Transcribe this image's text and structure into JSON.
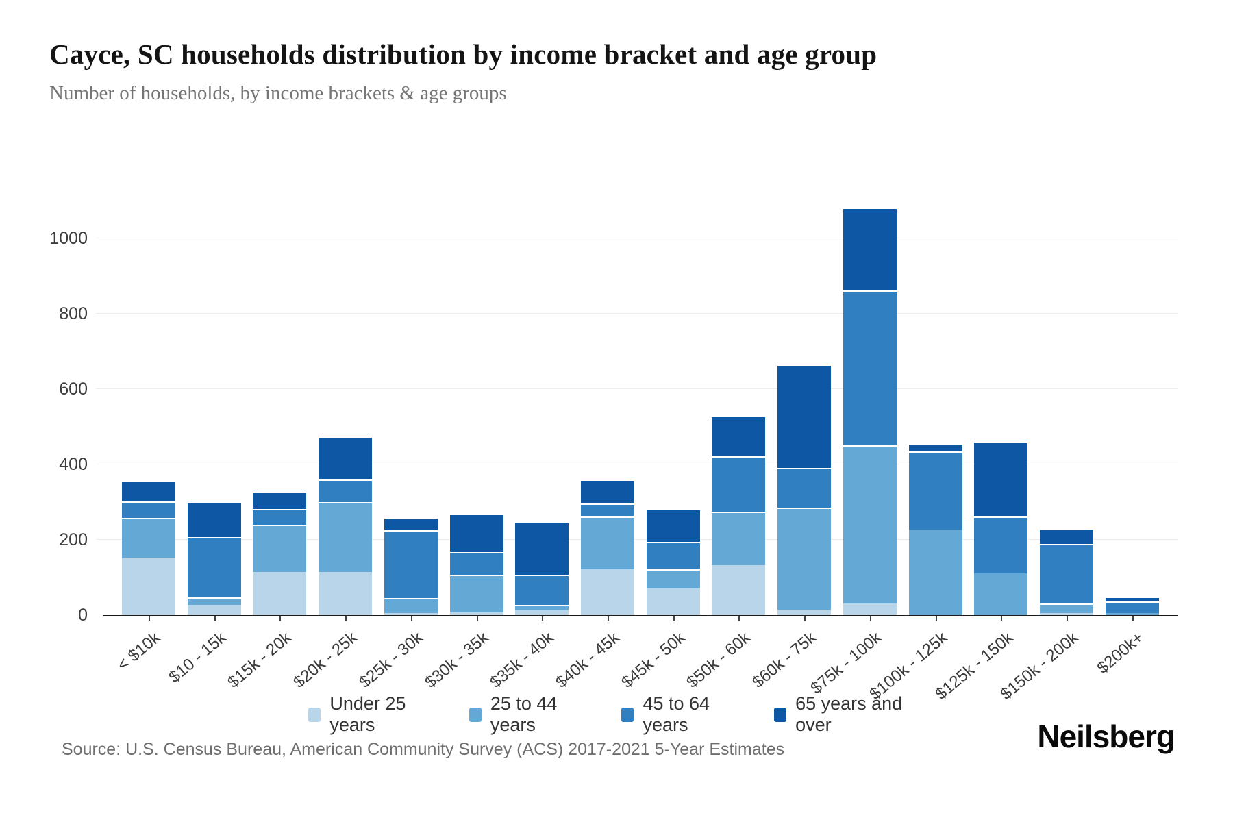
{
  "header": {
    "title": "Cayce, SC households distribution by income bracket and age group",
    "subtitle": "Number of households, by income brackets & age groups"
  },
  "footer": {
    "source": "Source: U.S. Census Bureau, American Community Survey (ACS) 2017-2021 5-Year Estimates",
    "logo": "Neilsberg"
  },
  "colors": {
    "under_25": "#b9d5ea",
    "25_to_44": "#64a9d6",
    "45_to_64": "#2f7fc1",
    "65_and_over": "#0d57a5",
    "gridline": "#ececec",
    "axis": "#1c1c1c"
  },
  "chart_data": {
    "type": "bar",
    "stacked": true,
    "title": "Cayce, SC households distribution by income bracket and age group",
    "subtitle": "Number of households, by income brackets & age groups",
    "xlabel": "",
    "ylabel": "",
    "ylim": [
      0,
      1170
    ],
    "yticks": [
      0,
      200,
      400,
      600,
      800,
      1000
    ],
    "grid": true,
    "legend_position": "bottom",
    "categories": [
      "< $10k",
      "$10 - 15k",
      "$15k - 20k",
      "$20k - 25k",
      "$25k - 30k",
      "$30k - 35k",
      "$35k - 40k",
      "$40k - 45k",
      "$45k - 50k",
      "$50k - 60k",
      "$60k - 75k",
      "$75k - 100k",
      "$100k - 125k",
      "$125k - 150k",
      "$150k - 200k",
      "$200k+"
    ],
    "series": [
      {
        "name": "Under 25 years",
        "color": "#b9d5ea",
        "values": [
          152,
          28,
          115,
          115,
          5,
          8,
          12,
          122,
          70,
          133,
          15,
          30,
          0,
          0,
          5,
          0
        ]
      },
      {
        "name": "25 to 44 years",
        "color": "#64a9d6",
        "values": [
          105,
          20,
          125,
          185,
          40,
          100,
          15,
          140,
          50,
          142,
          270,
          420,
          228,
          110,
          25,
          6
        ]
      },
      {
        "name": "45 to 64 years",
        "color": "#2f7fc1",
        "values": [
          43,
          160,
          42,
          60,
          180,
          60,
          80,
          35,
          72,
          148,
          105,
          410,
          207,
          150,
          158,
          30
        ]
      },
      {
        "name": "65 years and over",
        "color": "#0d57a5",
        "values": [
          55,
          92,
          48,
          115,
          35,
          102,
          140,
          63,
          88,
          108,
          275,
          220,
          22,
          200,
          42,
          12
        ]
      }
    ],
    "totals": [
      355,
      300,
      330,
      475,
      260,
      270,
      247,
      360,
      280,
      531,
      665,
      1080,
      457,
      460,
      230,
      48
    ]
  }
}
